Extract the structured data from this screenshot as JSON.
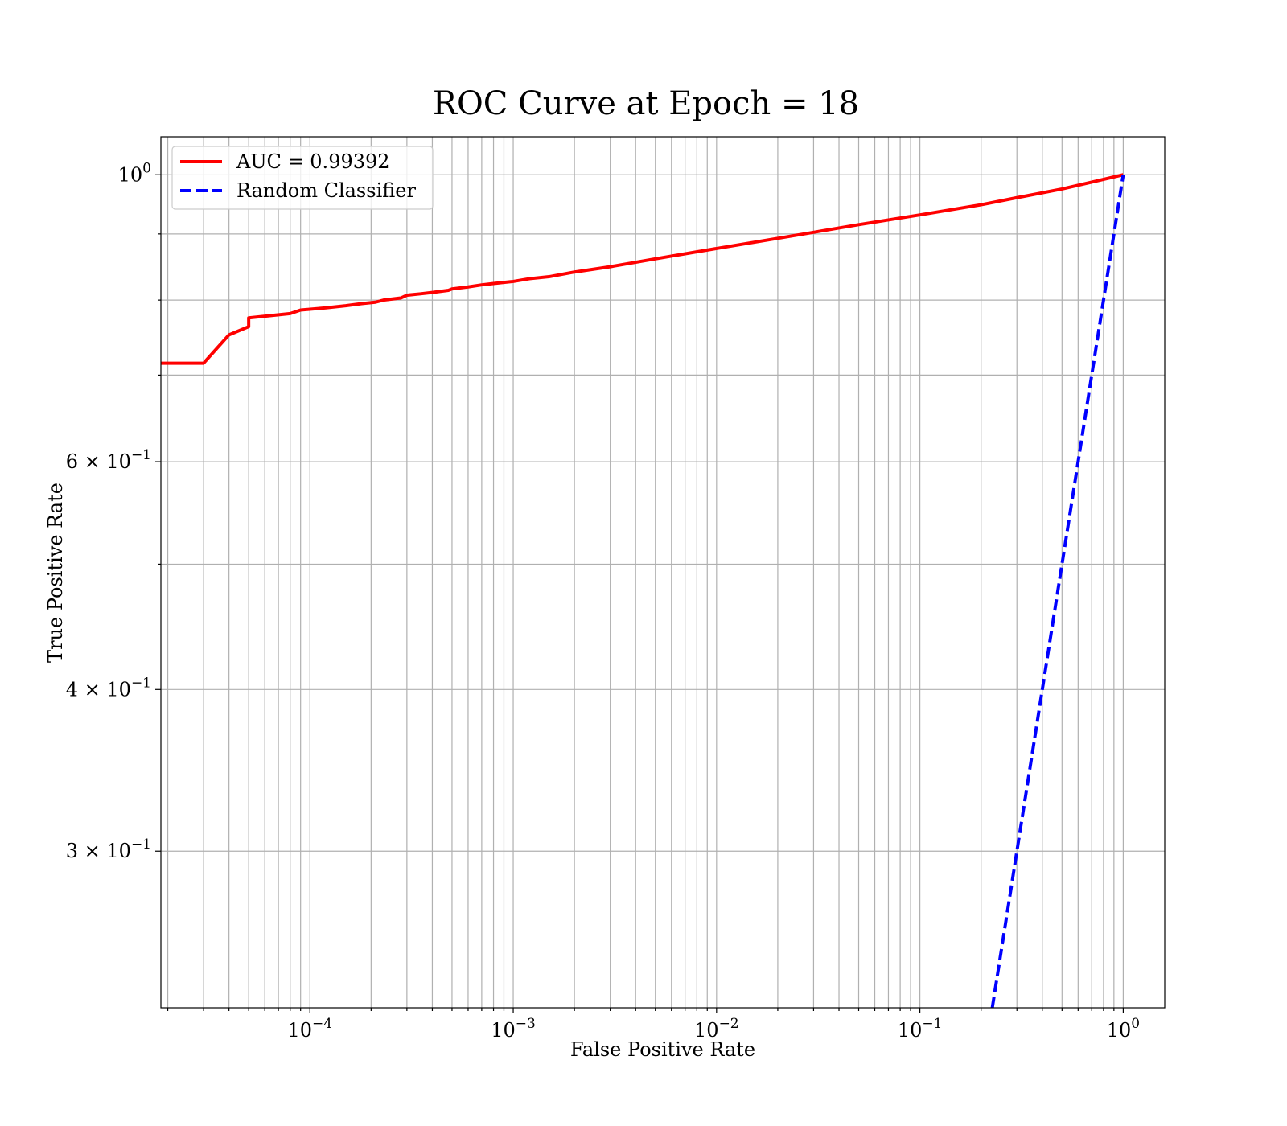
{
  "chart_data": {
    "type": "line",
    "title": "ROC Curve at Epoch = 18",
    "xlabel": "False Positive Rate",
    "ylabel": "True Positive Rate",
    "xscale": "log",
    "yscale": "log",
    "xlim": [
      1.85e-05,
      1.6
    ],
    "ylim": [
      0.227,
      1.07
    ],
    "grid": true,
    "grid_which": "both",
    "legend": {
      "placement": "upper-left"
    },
    "x_ticks": [
      {
        "value": 0.0001,
        "base": "10",
        "exp": "−4"
      },
      {
        "value": 0.001,
        "base": "10",
        "exp": "−3"
      },
      {
        "value": 0.01,
        "base": "10",
        "exp": "−2"
      },
      {
        "value": 0.1,
        "base": "10",
        "exp": "−1"
      },
      {
        "value": 1,
        "base": "10",
        "exp": "0"
      }
    ],
    "y_ticks": [
      {
        "value": 1.0,
        "base": "10",
        "exp": "0"
      },
      {
        "value": 0.6,
        "base": "6 × 10",
        "exp": "−1"
      },
      {
        "value": 0.4,
        "base": "4 × 10",
        "exp": "−1"
      },
      {
        "value": 0.3,
        "base": "3 × 10",
        "exp": "−1"
      }
    ],
    "y_minor_gridlines": [
      0.9,
      0.8,
      0.7,
      0.5
    ],
    "series": [
      {
        "name": "AUC = 0.99392",
        "color": "#ff0000",
        "style": "solid",
        "x": [
          1.85e-05,
          3e-05,
          4e-05,
          5e-05,
          5e-05,
          8e-05,
          9e-05,
          0.00012,
          0.00015,
          0.00018,
          0.00021,
          0.00023,
          0.00028,
          0.0003,
          0.00035,
          0.0004,
          0.00048,
          0.0005,
          0.0006,
          0.0007,
          0.0008,
          0.001,
          0.0012,
          0.0015,
          0.002,
          0.003,
          0.005,
          0.01,
          0.02,
          0.05,
          0.1,
          0.2,
          0.3,
          0.5,
          0.7,
          1.0
        ],
        "y": [
          0.715,
          0.715,
          0.752,
          0.763,
          0.775,
          0.781,
          0.786,
          0.789,
          0.792,
          0.795,
          0.797,
          0.8,
          0.803,
          0.807,
          0.809,
          0.811,
          0.814,
          0.816,
          0.819,
          0.822,
          0.824,
          0.827,
          0.831,
          0.834,
          0.841,
          0.849,
          0.861,
          0.877,
          0.893,
          0.915,
          0.931,
          0.948,
          0.96,
          0.975,
          0.987,
          1.0
        ]
      },
      {
        "name": "Random Classifier",
        "color": "#0000ff",
        "style": "dashed",
        "x": [
          0.227,
          0.3,
          0.4,
          0.5,
          0.6,
          0.7,
          0.8,
          0.9,
          1.0
        ],
        "y": [
          0.227,
          0.3,
          0.4,
          0.5,
          0.6,
          0.7,
          0.8,
          0.9,
          1.0
        ]
      }
    ]
  }
}
